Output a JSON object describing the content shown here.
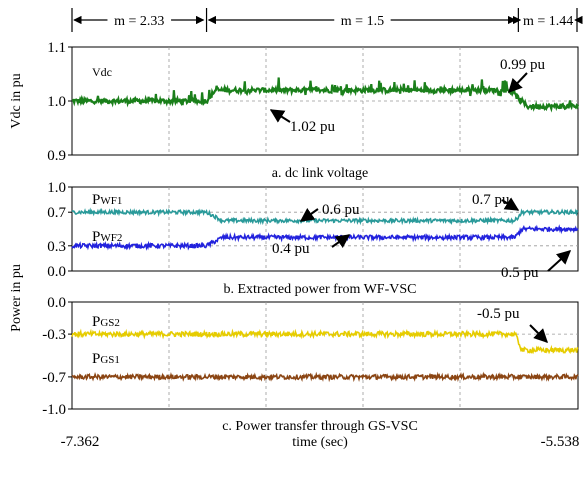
{
  "segments": [
    {
      "label": "m = 2.33",
      "x_start": -7.362,
      "x_end": -6.877
    },
    {
      "label": "m = 1.5",
      "x_start": -6.877,
      "x_end": -5.753
    },
    {
      "label": "m = 1.44",
      "x_start": -5.753,
      "x_end": -5.538
    }
  ],
  "x_axis": {
    "label": "time (sec)",
    "start_label": "-7.362",
    "end_label": "-5.538",
    "range": [
      -7.362,
      -5.538
    ]
  },
  "shared_ylabel": "Power in pu",
  "chart_data": [
    {
      "type": "line",
      "caption": "a. dc link voltage",
      "ylabel": "Vdc in pu",
      "ylim": [
        0.9,
        1.1
      ],
      "yticks": [
        "0.9",
        "1.0",
        "1.1"
      ],
      "ytick_values": [
        0.9,
        1.0,
        1.1
      ],
      "grid": true,
      "series": [
        {
          "name": "Vdc",
          "color": "#1a7f1a",
          "x": [
            -7.362,
            -6.877,
            -6.845,
            -5.785,
            -5.72,
            -5.538
          ],
          "values": [
            1.0,
            1.0,
            1.02,
            1.02,
            0.99,
            0.99
          ]
        }
      ],
      "annotations": [
        {
          "text": "1.02 pu",
          "x": -6.6,
          "y": 1.02
        },
        {
          "text": "0.99 pu",
          "x": -5.59,
          "y": 0.99
        }
      ]
    },
    {
      "type": "line",
      "caption": "b. Extracted power from WF-VSC",
      "ylim": [
        0.0,
        1.0
      ],
      "yticks": [
        "0.0",
        "0.3",
        "0.7",
        "1.0"
      ],
      "ytick_values": [
        0.0,
        0.3,
        0.7,
        1.0
      ],
      "grid": true,
      "series": [
        {
          "name": "PWF1",
          "label_main": "P",
          "label_sub": "WF1",
          "color": "#2a9a9a",
          "x": [
            -7.362,
            -6.877,
            -6.82,
            -5.765,
            -5.74,
            -5.538
          ],
          "values": [
            0.7,
            0.7,
            0.6,
            0.6,
            0.7,
            0.7
          ]
        },
        {
          "name": "PWF2",
          "label_main": "P",
          "label_sub": "WF2",
          "color": "#2222dd",
          "x": [
            -7.362,
            -6.877,
            -6.82,
            -5.765,
            -5.74,
            -5.538
          ],
          "values": [
            0.3,
            0.3,
            0.4,
            0.4,
            0.5,
            0.5
          ]
        }
      ],
      "annotations": [
        {
          "text": "0.6 pu",
          "x": -6.5,
          "y": 0.6
        },
        {
          "text": "0.7 pu",
          "x": -5.72,
          "y": 0.7
        },
        {
          "text": "0.4 pu",
          "x": -6.48,
          "y": 0.4
        },
        {
          "text": "0.5 pu",
          "x": -5.62,
          "y": 0.5
        }
      ]
    },
    {
      "type": "line",
      "caption": "c. Power transfer through GS-VSC",
      "ylim": [
        -1.0,
        0.0
      ],
      "yticks": [
        "-1.0",
        "-0.7",
        "-0.3",
        "0.0"
      ],
      "ytick_values": [
        -1.0,
        -0.7,
        -0.3,
        0.0
      ],
      "grid": true,
      "series": [
        {
          "name": "PGS2",
          "label_main": "P",
          "label_sub": "GS2",
          "color": "#e6cc00",
          "x": [
            -7.362,
            -5.765,
            -5.74,
            -5.538
          ],
          "values": [
            -0.3,
            -0.3,
            -0.45,
            -0.45
          ]
        },
        {
          "name": "PGS1",
          "label_main": "P",
          "label_sub": "GS1",
          "color": "#8b4513",
          "x": [
            -7.362,
            -5.538
          ],
          "values": [
            -0.7,
            -0.7
          ]
        }
      ],
      "annotations": [
        {
          "text": "-0.5 pu",
          "x": -5.6,
          "y": -0.45
        }
      ]
    }
  ]
}
